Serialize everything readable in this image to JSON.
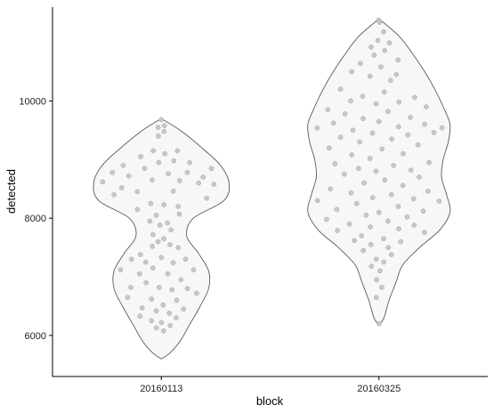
{
  "chart_data": {
    "type": "violin",
    "xlabel": "block",
    "ylabel": "detected",
    "categories": [
      "20160113",
      "20160325"
    ],
    "y_ticks": [
      6000,
      8000,
      10000
    ],
    "y_tick_labels": [
      "6000",
      "8000",
      "10000"
    ],
    "ylim": [
      5300,
      11600
    ],
    "grid": false,
    "colors": {
      "violin_fill": "#f7f7f7",
      "violin_outline": "#5a5a5a",
      "point": "#c8c8c8"
    },
    "series": [
      {
        "category": "20160113",
        "min": 5600,
        "max": 9700,
        "density_profile": [
          [
            5600,
            0.0
          ],
          [
            5700,
            0.05
          ],
          [
            5900,
            0.11
          ],
          [
            6200,
            0.17
          ],
          [
            6500,
            0.23
          ],
          [
            6800,
            0.28
          ],
          [
            7100,
            0.28
          ],
          [
            7400,
            0.22
          ],
          [
            7700,
            0.15
          ],
          [
            8000,
            0.19
          ],
          [
            8300,
            0.37
          ],
          [
            8600,
            0.4
          ],
          [
            8900,
            0.35
          ],
          [
            9200,
            0.24
          ],
          [
            9500,
            0.11
          ],
          [
            9700,
            0.0
          ]
        ],
        "points": [
          {
            "j": 0.05,
            "y": 9680
          },
          {
            "j": 0.3,
            "y": 9580
          },
          {
            "j": -0.25,
            "y": 9550
          },
          {
            "j": 0.15,
            "y": 9480
          },
          {
            "j": -0.12,
            "y": 9400
          },
          {
            "j": -0.2,
            "y": 9150
          },
          {
            "j": 0.4,
            "y": 9150
          },
          {
            "j": 0.08,
            "y": 9100
          },
          {
            "j": -0.45,
            "y": 9050
          },
          {
            "j": 0.25,
            "y": 8980
          },
          {
            "j": -0.05,
            "y": 8950
          },
          {
            "j": 0.55,
            "y": 8950
          },
          {
            "j": -0.7,
            "y": 8900
          },
          {
            "j": 0.9,
            "y": 8850
          },
          {
            "j": -0.3,
            "y": 8850
          },
          {
            "j": 0.45,
            "y": 8780
          },
          {
            "j": -0.85,
            "y": 8780
          },
          {
            "j": 0.12,
            "y": 8760
          },
          {
            "j": -0.55,
            "y": 8720
          },
          {
            "j": 0.7,
            "y": 8700
          },
          {
            "j": -0.95,
            "y": 8620
          },
          {
            "j": 0.3,
            "y": 8640
          },
          {
            "j": -0.15,
            "y": 8650
          },
          {
            "j": 0.6,
            "y": 8600
          },
          {
            "j": -0.65,
            "y": 8520
          },
          {
            "j": 0.85,
            "y": 8580
          },
          {
            "j": -0.4,
            "y": 8450
          },
          {
            "j": 0.2,
            "y": 8460
          },
          {
            "j": -0.8,
            "y": 8400
          },
          {
            "j": 0.78,
            "y": 8340
          },
          {
            "j": -0.2,
            "y": 8250
          },
          {
            "j": 0.05,
            "y": 8230
          },
          {
            "j": 0.35,
            "y": 8200
          },
          {
            "j": -0.55,
            "y": 8150
          },
          {
            "j": -0.15,
            "y": 8050
          },
          {
            "j": 0.5,
            "y": 8070
          },
          {
            "j": -0.4,
            "y": 7950
          },
          {
            "j": 0.22,
            "y": 7920
          },
          {
            "j": -0.05,
            "y": 7880
          },
          {
            "j": 0.38,
            "y": 7800
          },
          {
            "j": -0.35,
            "y": 7720
          },
          {
            "j": 0.1,
            "y": 7650
          },
          {
            "j": -0.12,
            "y": 7600
          },
          {
            "j": 0.3,
            "y": 7550
          },
          {
            "j": -0.3,
            "y": 7520
          },
          {
            "j": 0.55,
            "y": 7500
          },
          {
            "j": -0.6,
            "y": 7380
          },
          {
            "j": 0.65,
            "y": 7300
          },
          {
            "j": 0.0,
            "y": 7330
          },
          {
            "j": -0.8,
            "y": 7300
          },
          {
            "j": -0.4,
            "y": 7250
          },
          {
            "j": 0.3,
            "y": 7240
          },
          {
            "j": -0.2,
            "y": 7150
          },
          {
            "j": 0.75,
            "y": 7120
          },
          {
            "j": -0.95,
            "y": 7120
          },
          {
            "j": 0.15,
            "y": 7050
          },
          {
            "j": -0.5,
            "y": 7050
          },
          {
            "j": 0.45,
            "y": 6950
          },
          {
            "j": -0.35,
            "y": 6900
          },
          {
            "j": -0.7,
            "y": 6820
          },
          {
            "j": 0.6,
            "y": 6800
          },
          {
            "j": 0.25,
            "y": 6780
          },
          {
            "j": -0.05,
            "y": 6820
          },
          {
            "j": 0.85,
            "y": 6720
          },
          {
            "j": -0.85,
            "y": 6650
          },
          {
            "j": -0.25,
            "y": 6620
          },
          {
            "j": 0.4,
            "y": 6600
          },
          {
            "j": 0.05,
            "y": 6520
          },
          {
            "j": -0.55,
            "y": 6470
          },
          {
            "j": 0.65,
            "y": 6450
          },
          {
            "j": -0.15,
            "y": 6420
          },
          {
            "j": 0.25,
            "y": 6380
          },
          {
            "j": -0.7,
            "y": 6330
          },
          {
            "j": 0.5,
            "y": 6300
          },
          {
            "j": -0.35,
            "y": 6250
          },
          {
            "j": 0.0,
            "y": 6220
          },
          {
            "j": 0.35,
            "y": 6170
          },
          {
            "j": -0.2,
            "y": 6130
          },
          {
            "j": 0.1,
            "y": 6080
          }
        ]
      },
      {
        "category": "20160325",
        "min": 6180,
        "max": 11400,
        "density_profile": [
          [
            6180,
            0.0
          ],
          [
            6300,
            0.03
          ],
          [
            6600,
            0.06
          ],
          [
            6900,
            0.1
          ],
          [
            7200,
            0.14
          ],
          [
            7500,
            0.24
          ],
          [
            7800,
            0.36
          ],
          [
            8100,
            0.42
          ],
          [
            8400,
            0.4
          ],
          [
            8700,
            0.37
          ],
          [
            9000,
            0.38
          ],
          [
            9300,
            0.41
          ],
          [
            9600,
            0.42
          ],
          [
            9900,
            0.38
          ],
          [
            10200,
            0.33
          ],
          [
            10500,
            0.27
          ],
          [
            10800,
            0.2
          ],
          [
            11100,
            0.12
          ],
          [
            11400,
            0.0
          ]
        ],
        "points": [
          {
            "j": -0.25,
            "y": 11380
          },
          {
            "j": 0.15,
            "y": 11340
          },
          {
            "j": 0.35,
            "y": 11180
          },
          {
            "j": -0.05,
            "y": 11030
          },
          {
            "j": 0.45,
            "y": 10990
          },
          {
            "j": -0.3,
            "y": 10920
          },
          {
            "j": 0.2,
            "y": 10860
          },
          {
            "j": -0.15,
            "y": 10780
          },
          {
            "j": 0.55,
            "y": 10700
          },
          {
            "j": -0.5,
            "y": 10640
          },
          {
            "j": 0.05,
            "y": 10580
          },
          {
            "j": -0.65,
            "y": 10500
          },
          {
            "j": 0.4,
            "y": 10450
          },
          {
            "j": -0.2,
            "y": 10420
          },
          {
            "j": 0.25,
            "y": 10350
          },
          {
            "j": -0.75,
            "y": 10200
          },
          {
            "j": 0.1,
            "y": 10150
          },
          {
            "j": -0.3,
            "y": 10080
          },
          {
            "j": 0.65,
            "y": 10060
          },
          {
            "j": -0.5,
            "y": 10000
          },
          {
            "j": 0.35,
            "y": 9980
          },
          {
            "j": -0.05,
            "y": 9950
          },
          {
            "j": 0.8,
            "y": 9900
          },
          {
            "j": -0.85,
            "y": 9850
          },
          {
            "j": 0.15,
            "y": 9820
          },
          {
            "j": -0.55,
            "y": 9780
          },
          {
            "j": 0.5,
            "y": 9720
          },
          {
            "j": -0.25,
            "y": 9700
          },
          {
            "j": 0.0,
            "y": 9650
          },
          {
            "j": -0.7,
            "y": 9620
          },
          {
            "j": 0.7,
            "y": 9600
          },
          {
            "j": -0.95,
            "y": 9540
          },
          {
            "j": 0.97,
            "y": 9540
          },
          {
            "j": 0.3,
            "y": 9560
          },
          {
            "j": -0.4,
            "y": 9500
          },
          {
            "j": 0.85,
            "y": 9460
          },
          {
            "j": -0.1,
            "y": 9450
          },
          {
            "j": 0.45,
            "y": 9420
          },
          {
            "j": -0.6,
            "y": 9380
          },
          {
            "j": 0.2,
            "y": 9350
          },
          {
            "j": -0.3,
            "y": 9300
          },
          {
            "j": 0.62,
            "y": 9250
          },
          {
            "j": -0.8,
            "y": 9200
          },
          {
            "j": 0.05,
            "y": 9180
          },
          {
            "j": 0.4,
            "y": 9100
          },
          {
            "j": -0.45,
            "y": 9080
          },
          {
            "j": -0.15,
            "y": 9020
          },
          {
            "j": 0.85,
            "y": 8950
          },
          {
            "j": -0.75,
            "y": 8930
          },
          {
            "j": 0.25,
            "y": 8900
          },
          {
            "j": -0.35,
            "y": 8850
          },
          {
            "j": 0.55,
            "y": 8820
          },
          {
            "j": -0.05,
            "y": 8800
          },
          {
            "j": -0.6,
            "y": 8750
          },
          {
            "j": 0.7,
            "y": 8700
          },
          {
            "j": 0.1,
            "y": 8650
          },
          {
            "j": -0.25,
            "y": 8600
          },
          {
            "j": 0.4,
            "y": 8560
          },
          {
            "j": -0.8,
            "y": 8500
          },
          {
            "j": 0.8,
            "y": 8460
          },
          {
            "j": -0.45,
            "y": 8430
          },
          {
            "j": 0.2,
            "y": 8400
          },
          {
            "j": -0.1,
            "y": 8350
          },
          {
            "j": 0.55,
            "y": 8330
          },
          {
            "j": -0.97,
            "y": 8300
          },
          {
            "j": 0.95,
            "y": 8290
          },
          {
            "j": -0.35,
            "y": 8250
          },
          {
            "j": 0.3,
            "y": 8200
          },
          {
            "j": -0.65,
            "y": 8150
          },
          {
            "j": 0.68,
            "y": 8120
          },
          {
            "j": 0.0,
            "y": 8100
          },
          {
            "j": -0.2,
            "y": 8050
          },
          {
            "j": 0.45,
            "y": 8020
          },
          {
            "j": -0.85,
            "y": 7980
          },
          {
            "j": 0.15,
            "y": 7950
          },
          {
            "j": -0.5,
            "y": 7900
          },
          {
            "j": 0.6,
            "y": 7880
          },
          {
            "j": -0.15,
            "y": 7850
          },
          {
            "j": 0.35,
            "y": 7820
          },
          {
            "j": -0.75,
            "y": 7790
          },
          {
            "j": 0.85,
            "y": 7760
          },
          {
            "j": -0.35,
            "y": 7700
          },
          {
            "j": 0.1,
            "y": 7650
          },
          {
            "j": -0.55,
            "y": 7620
          },
          {
            "j": 0.5,
            "y": 7600
          },
          {
            "j": -0.2,
            "y": 7550
          },
          {
            "j": 0.25,
            "y": 7500
          },
          {
            "j": -0.45,
            "y": 7450
          },
          {
            "j": 0.4,
            "y": 7380
          },
          {
            "j": -0.1,
            "y": 7300
          },
          {
            "j": 0.2,
            "y": 7250
          },
          {
            "j": -0.35,
            "y": 7180
          },
          {
            "j": 0.05,
            "y": 7100
          },
          {
            "j": -0.15,
            "y": 6950
          },
          {
            "j": 0.2,
            "y": 6820
          },
          {
            "j": -0.25,
            "y": 6650
          },
          {
            "j": 0.0,
            "y": 6200
          }
        ]
      }
    ]
  }
}
